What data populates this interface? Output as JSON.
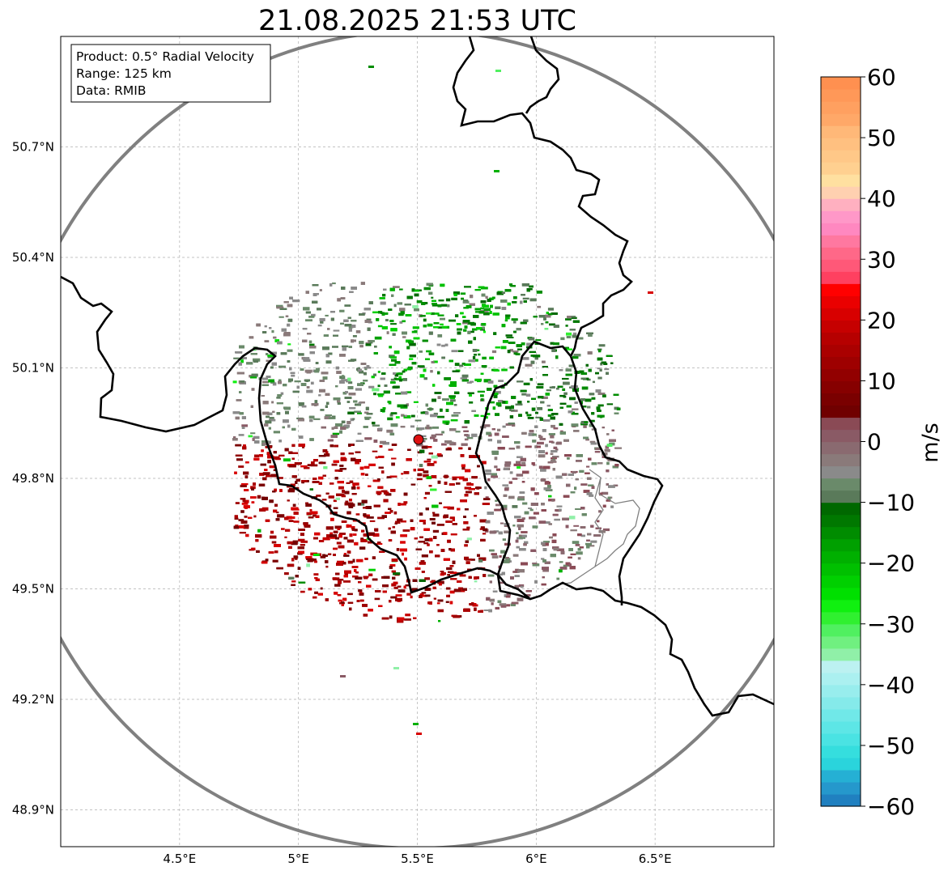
{
  "title": "21.08.2025 21:53 UTC",
  "info_box": {
    "product": "Product: 0.5° Radial Velocity",
    "range": "Range: 125 km",
    "data": "Data: RMIB"
  },
  "map": {
    "lon_ticks": [
      "4.5°E",
      "5°E",
      "5.5°E",
      "6°E",
      "6.5°E"
    ],
    "lat_ticks": [
      "50.7°N",
      "50.4°N",
      "50.1°N",
      "49.8°N",
      "49.5°N",
      "49.2°N",
      "48.9°N"
    ],
    "lon_range": [
      4.0,
      7.0
    ],
    "lat_range": [
      48.8,
      51.0
    ],
    "radar_site": {
      "lon": 5.505,
      "lat": 49.914
    },
    "range_ring_km": 125,
    "colors": {
      "range_ring": "#808080",
      "borders": "#000000",
      "sub_borders": "#808080",
      "radar_marker": "#dd1111",
      "grid": "#b0b0b0"
    }
  },
  "colorbar": {
    "label": "m/s",
    "ticks": [
      "60",
      "50",
      "40",
      "30",
      "20",
      "10",
      "0",
      "−10",
      "−20",
      "−30",
      "−40",
      "−50",
      "−60"
    ],
    "range": [
      -60,
      60
    ],
    "colors": [
      "#2080c0",
      "#2598cc",
      "#25b0d4",
      "#2ad4dc",
      "#35dede",
      "#4ae3e3",
      "#5de6e6",
      "#70e8e8",
      "#85eaea",
      "#98eded",
      "#abf0f0",
      "#bcf1f1",
      "#90f0a8",
      "#70f080",
      "#50f060",
      "#30f030",
      "#10f010",
      "#00e000",
      "#00d000",
      "#00c000",
      "#00b000",
      "#00a000",
      "#008c00",
      "#007800",
      "#006800",
      "#5a7a5a",
      "#6a8a6a",
      "#8a8a8a",
      "#8a7a7a",
      "#8a6a70",
      "#8a5a65",
      "#8a4a55",
      "#700000",
      "#7a0000",
      "#860000",
      "#920000",
      "#9e0000",
      "#aa0000",
      "#b60000",
      "#c60000",
      "#d80000",
      "#ea0000",
      "#ff0000",
      "#ff4060",
      "#ff5878",
      "#ff6888",
      "#ff78a0",
      "#ff88c0",
      "#ff98c8",
      "#ffb0c0",
      "#ffd0b0",
      "#ffe0a0",
      "#ffd090",
      "#ffc888",
      "#ffc080",
      "#ffb878",
      "#ffa868",
      "#ffa060",
      "#ff9858",
      "#ff9050"
    ]
  }
}
